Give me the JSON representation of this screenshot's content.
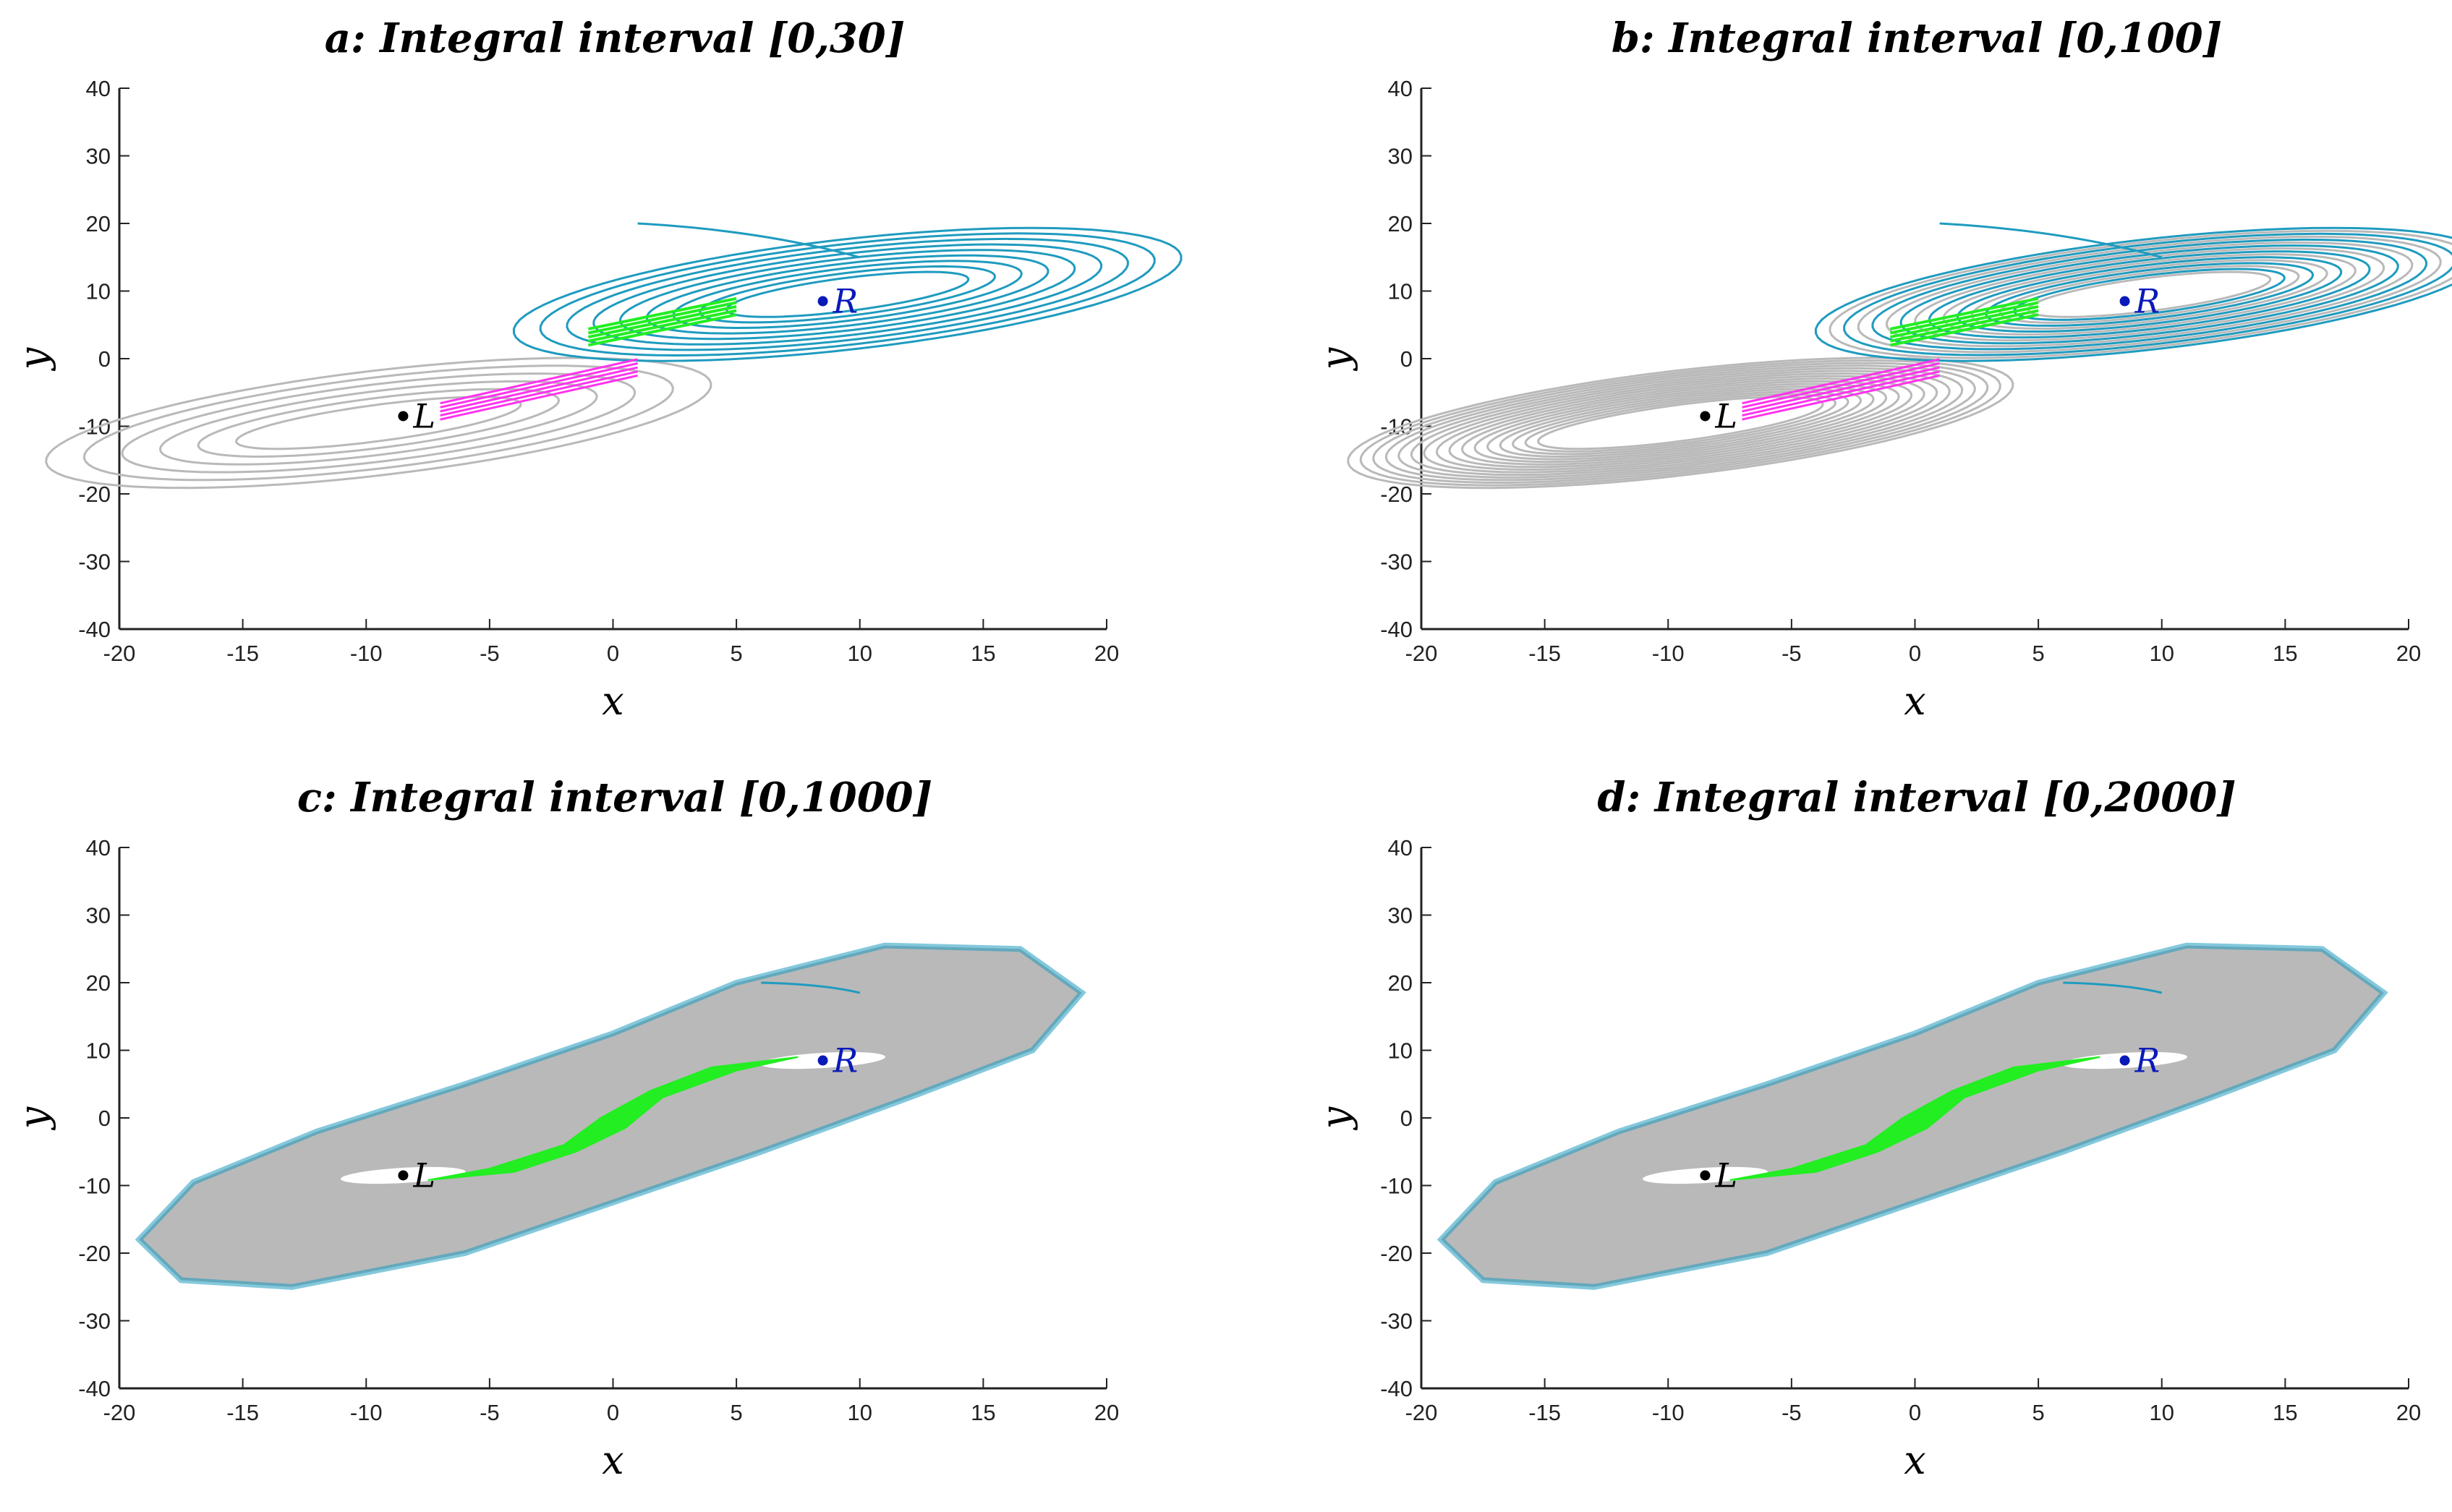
{
  "colors": {
    "background": "#ffffff",
    "axis": "#222222",
    "left_wing_trajectory": "#b9b9b9",
    "right_wing_trajectory": "#1f9bbf",
    "crossing_right_to_left": "#ff33ee",
    "crossing_left_to_right": "#22ee22",
    "equilibrium_L": "#000000",
    "equilibrium_R": "#0a1ab8"
  },
  "chart_data": [
    {
      "id": "a",
      "type": "line",
      "title": "a: Integral interval [0,30]",
      "xlabel": "x",
      "ylabel": "y",
      "xlim": [
        -20,
        20
      ],
      "ylim": [
        -40,
        40
      ],
      "xticks": [
        "-20",
        "-15",
        "-10",
        "-5",
        "0",
        "5",
        "10",
        "15",
        "20"
      ],
      "yticks": [
        "40",
        "30",
        "20",
        "10",
        "0",
        "-10",
        "-20",
        "-30",
        "-40"
      ],
      "grid": false,
      "equilibria": [
        {
          "label": "L",
          "x": -8.5,
          "y": -8.5
        },
        {
          "label": "R",
          "x": 8.5,
          "y": 8.5
        }
      ],
      "density": "sparse",
      "fill_level": 0,
      "left_loops": 6,
      "right_loops": 9
    },
    {
      "id": "b",
      "type": "line",
      "title": "b: Integral interval [0,100]",
      "xlabel": "x",
      "ylabel": "y",
      "xlim": [
        -20,
        20
      ],
      "ylim": [
        -40,
        40
      ],
      "xticks": [
        "-20",
        "-15",
        "-10",
        "-5",
        "0",
        "5",
        "10",
        "15",
        "20"
      ],
      "yticks": [
        "40",
        "30",
        "20",
        "10",
        "0",
        "-10",
        "-20",
        "-30",
        "-40"
      ],
      "grid": false,
      "equilibria": [
        {
          "label": "L",
          "x": -8.5,
          "y": -8.5
        },
        {
          "label": "R",
          "x": 8.5,
          "y": 8.5
        }
      ],
      "density": "medium",
      "fill_level": 0,
      "left_loops": 16,
      "right_loops": 16
    },
    {
      "id": "c",
      "type": "line",
      "title": "c: Integral interval [0,1000]",
      "xlabel": "x",
      "ylabel": "y",
      "xlim": [
        -20,
        20
      ],
      "ylim": [
        -40,
        40
      ],
      "xticks": [
        "-20",
        "-15",
        "-10",
        "-5",
        "0",
        "5",
        "10",
        "15",
        "20"
      ],
      "yticks": [
        "40",
        "30",
        "20",
        "10",
        "0",
        "-10",
        "-20",
        "-30",
        "-40"
      ],
      "grid": false,
      "equilibria": [
        {
          "label": "L",
          "x": -8.5,
          "y": -8.5
        },
        {
          "label": "R",
          "x": 8.5,
          "y": 8.5
        }
      ],
      "density": "dense",
      "fill_level": 1,
      "left_loops": 0,
      "right_loops": 0
    },
    {
      "id": "d",
      "type": "line",
      "title": "d: Integral interval [0,2000]",
      "xlabel": "x",
      "ylabel": "y",
      "xlim": [
        -20,
        20
      ],
      "ylim": [
        -40,
        40
      ],
      "xticks": [
        "-20",
        "-15",
        "-10",
        "-5",
        "0",
        "5",
        "10",
        "15",
        "20"
      ],
      "yticks": [
        "40",
        "30",
        "20",
        "10",
        "0",
        "-10",
        "-20",
        "-30",
        "-40"
      ],
      "grid": false,
      "equilibria": [
        {
          "label": "L",
          "x": -8.5,
          "y": -8.5
        },
        {
          "label": "R",
          "x": 8.5,
          "y": 8.5
        }
      ],
      "density": "dense",
      "fill_level": 1,
      "left_loops": 0,
      "right_loops": 0
    }
  ]
}
